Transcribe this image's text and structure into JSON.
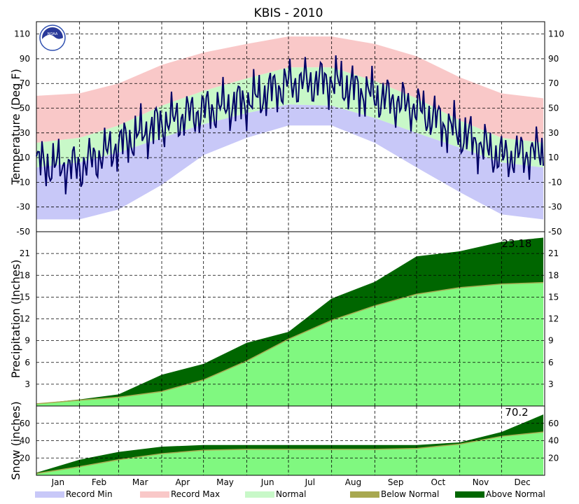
{
  "colors": {
    "record_min": "#c8c8f8",
    "record_max": "#f9c8c8",
    "normal": "#c8f8c8",
    "below_normal": "#a8a850",
    "above_normal": "#006600",
    "normal_precip": "#80f880",
    "observed_temp": "#000066"
  },
  "chart_data": [
    {
      "type": "area",
      "title": "KBIS - 2010",
      "ylabel": "Temperature (Deg F)",
      "ylim": [
        -50,
        120
      ],
      "yticks": [
        -50,
        -30,
        -10,
        10,
        30,
        50,
        70,
        90,
        110
      ],
      "x": [
        "Jan 1",
        "Feb 1",
        "Mar 1",
        "Apr 1",
        "May 1",
        "Jun 1",
        "Jul 1",
        "Aug 1",
        "Sep 1",
        "Oct 1",
        "Nov 1",
        "Dec 1",
        "Dec 31"
      ],
      "series": [
        {
          "name": "Record Max",
          "values": [
            60,
            62,
            70,
            85,
            95,
            102,
            108,
            108,
            102,
            92,
            75,
            62,
            58
          ]
        },
        {
          "name": "Normal",
          "values": [
            22,
            26,
            36,
            52,
            64,
            74,
            83,
            83,
            72,
            58,
            40,
            26,
            22
          ]
        },
        {
          "name": "Normal",
          "values": [
            2,
            6,
            14,
            26,
            37,
            46,
            53,
            52,
            42,
            30,
            18,
            6,
            2
          ]
        },
        {
          "name": "Record Min",
          "values": [
            -40,
            -40,
            -32,
            -12,
            12,
            26,
            36,
            36,
            22,
            2,
            -18,
            -36,
            -40
          ]
        },
        {
          "values": [
            5,
            2,
            20,
            38,
            48,
            55,
            70,
            72,
            60,
            50,
            30,
            10,
            15
          ]
        }
      ]
    },
    {
      "type": "area",
      "ylabel": "Precipitation (Inches)",
      "ylim": [
        0,
        24
      ],
      "yticks": [
        3,
        6,
        9,
        12,
        15,
        18,
        21
      ],
      "total_label": "23.18",
      "x": [
        "Jan 1",
        "Feb 1",
        "Mar 1",
        "Apr 1",
        "May 1",
        "Jun 1",
        "Jul 1",
        "Aug 1",
        "Sep 1",
        "Oct 1",
        "Nov 1",
        "Dec 1",
        "Dec 31"
      ],
      "series": [
        {
          "name": "Above Normal",
          "values": [
            0.3,
            0.9,
            1.6,
            4.3,
            5.8,
            8.7,
            10.2,
            14.8,
            17.1,
            20.6,
            21.3,
            22.6,
            23.18
          ]
        },
        {
          "name": "Normal",
          "values": [
            0.3,
            0.8,
            1.2,
            2.0,
            3.6,
            6.2,
            9.2,
            11.8,
            13.8,
            15.4,
            16.3,
            16.8,
            17.0
          ]
        }
      ]
    },
    {
      "type": "area",
      "ylabel": "Snow (inches)",
      "ylim": [
        0,
        80
      ],
      "yticks": [
        20,
        40,
        60
      ],
      "total_label": "70.2",
      "x": [
        "Jan 1",
        "Feb 1",
        "Mar 1",
        "Apr 1",
        "May 1",
        "Jun 1",
        "Jul 1",
        "Aug 1",
        "Sep 1",
        "Oct 1",
        "Nov 1",
        "Dec 1",
        "Dec 31"
      ],
      "series": [
        {
          "name": "Above Normal",
          "values": [
            3,
            18,
            27,
            33,
            35,
            35,
            35,
            35,
            35,
            35,
            38,
            50,
            70.2
          ]
        },
        {
          "name": "Normal",
          "values": [
            2,
            10,
            18,
            25,
            29,
            30,
            30,
            30,
            30,
            31,
            36,
            45,
            50
          ]
        }
      ]
    }
  ],
  "months": [
    "Jan",
    "Feb",
    "Mar",
    "Apr",
    "May",
    "Jun",
    "Jul",
    "Aug",
    "Sep",
    "Oct",
    "Nov",
    "Dec"
  ],
  "legend": [
    {
      "label": "Record Min",
      "key": "record_min"
    },
    {
      "label": "Record Max",
      "key": "record_max"
    },
    {
      "label": "Normal",
      "key": "normal"
    },
    {
      "label": "Below Normal",
      "key": "below_normal"
    },
    {
      "label": "Above Normal",
      "key": "above_normal"
    }
  ],
  "logo": {
    "text": "NOAA"
  }
}
